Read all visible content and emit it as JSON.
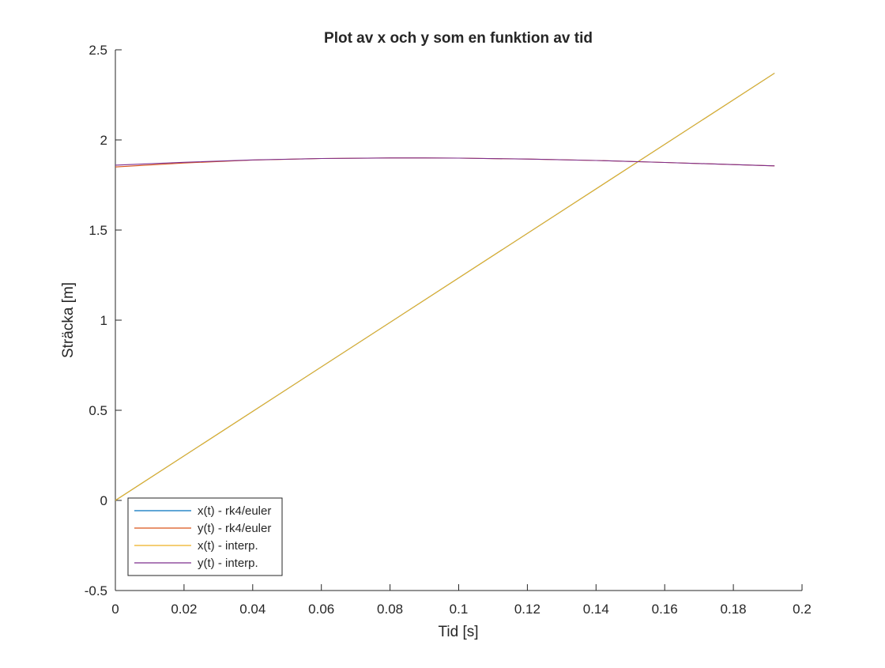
{
  "chart_data": {
    "type": "line",
    "title": "Plot av x och y som en funktion av tid",
    "xlabel": "Tid [s]",
    "ylabel": "Sträcka [m]",
    "xlim": [
      0,
      0.2
    ],
    "ylim": [
      -0.5,
      2.5
    ],
    "xticks": [
      "0",
      "0.02",
      "0.04",
      "0.06",
      "0.08",
      "0.1",
      "0.12",
      "0.14",
      "0.16",
      "0.18",
      "0.2"
    ],
    "yticks": [
      "-0.5",
      "0",
      "0.5",
      "1",
      "1.5",
      "2",
      "2.5"
    ],
    "grid": false,
    "legend_position": "bottom-left",
    "series": [
      {
        "name": "x(t) - rk4/euler",
        "color": "#0072BD",
        "x": [
          0,
          0.192
        ],
        "y": [
          0,
          2.37
        ]
      },
      {
        "name": "y(t) - rk4/euler",
        "color": "#D95319",
        "x": [
          0,
          0.02,
          0.04,
          0.06,
          0.08,
          0.09,
          0.1,
          0.12,
          0.14,
          0.16,
          0.18,
          0.192
        ],
        "y": [
          1.85,
          1.872,
          1.888,
          1.897,
          1.9,
          1.9,
          1.899,
          1.894,
          1.886,
          1.875,
          1.863,
          1.856
        ]
      },
      {
        "name": "x(t) - interp.",
        "color": "#EDB120",
        "x": [
          0,
          0.192
        ],
        "y": [
          0,
          2.37
        ]
      },
      {
        "name": "y(t) - interp.",
        "color": "#7E2F8E",
        "x": [
          0,
          0.02,
          0.04,
          0.06,
          0.08,
          0.09,
          0.1,
          0.12,
          0.14,
          0.16,
          0.18,
          0.192
        ],
        "y": [
          1.86,
          1.876,
          1.889,
          1.897,
          1.9,
          1.9,
          1.899,
          1.894,
          1.886,
          1.875,
          1.863,
          1.856
        ]
      }
    ]
  }
}
